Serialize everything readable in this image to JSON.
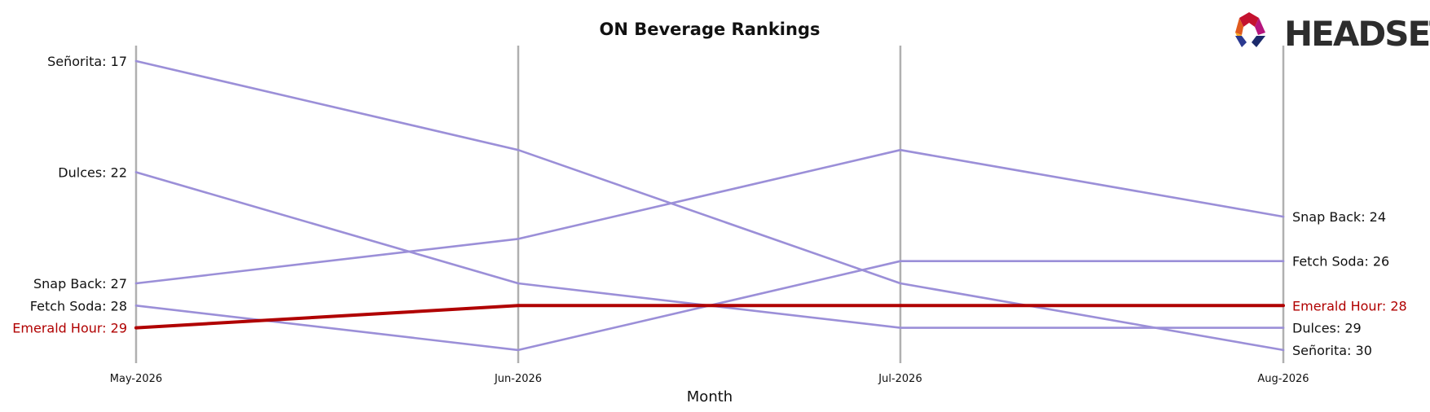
{
  "chart_data": {
    "type": "line",
    "title": "ON Beverage Rankings",
    "xlabel": "Month",
    "ylabel": "",
    "categories": [
      "May-2026",
      "Jun-2026",
      "Jul-2026",
      "Aug-2026"
    ],
    "y_inverted": true,
    "ylim": [
      16.4,
      30.6
    ],
    "grid": false,
    "legend": "none",
    "series": [
      {
        "name": "Señorita",
        "values": [
          17,
          21,
          27,
          30
        ],
        "color": "#9b8fd8",
        "highlight": false
      },
      {
        "name": "Dulces",
        "values": [
          22,
          27,
          29,
          29
        ],
        "color": "#9b8fd8",
        "highlight": false
      },
      {
        "name": "Snap Back",
        "values": [
          27,
          25,
          21,
          24
        ],
        "color": "#9b8fd8",
        "highlight": false
      },
      {
        "name": "Fetch Soda",
        "values": [
          28,
          30,
          26,
          26
        ],
        "color": "#9b8fd8",
        "highlight": false
      },
      {
        "name": "Emerald Hour",
        "values": [
          29,
          28,
          28,
          28
        ],
        "color": "#b00000",
        "highlight": true
      }
    ],
    "label_color_default": "#111111",
    "label_color_highlight": "#b00000",
    "axis_line_color": "#b0b0b0"
  },
  "branding": {
    "logo_text": "HEADSET",
    "logo_colors": [
      "#c4122f",
      "#e05a1e",
      "#f5a623",
      "#b5157d",
      "#2b3990",
      "#1c2a6b"
    ]
  }
}
